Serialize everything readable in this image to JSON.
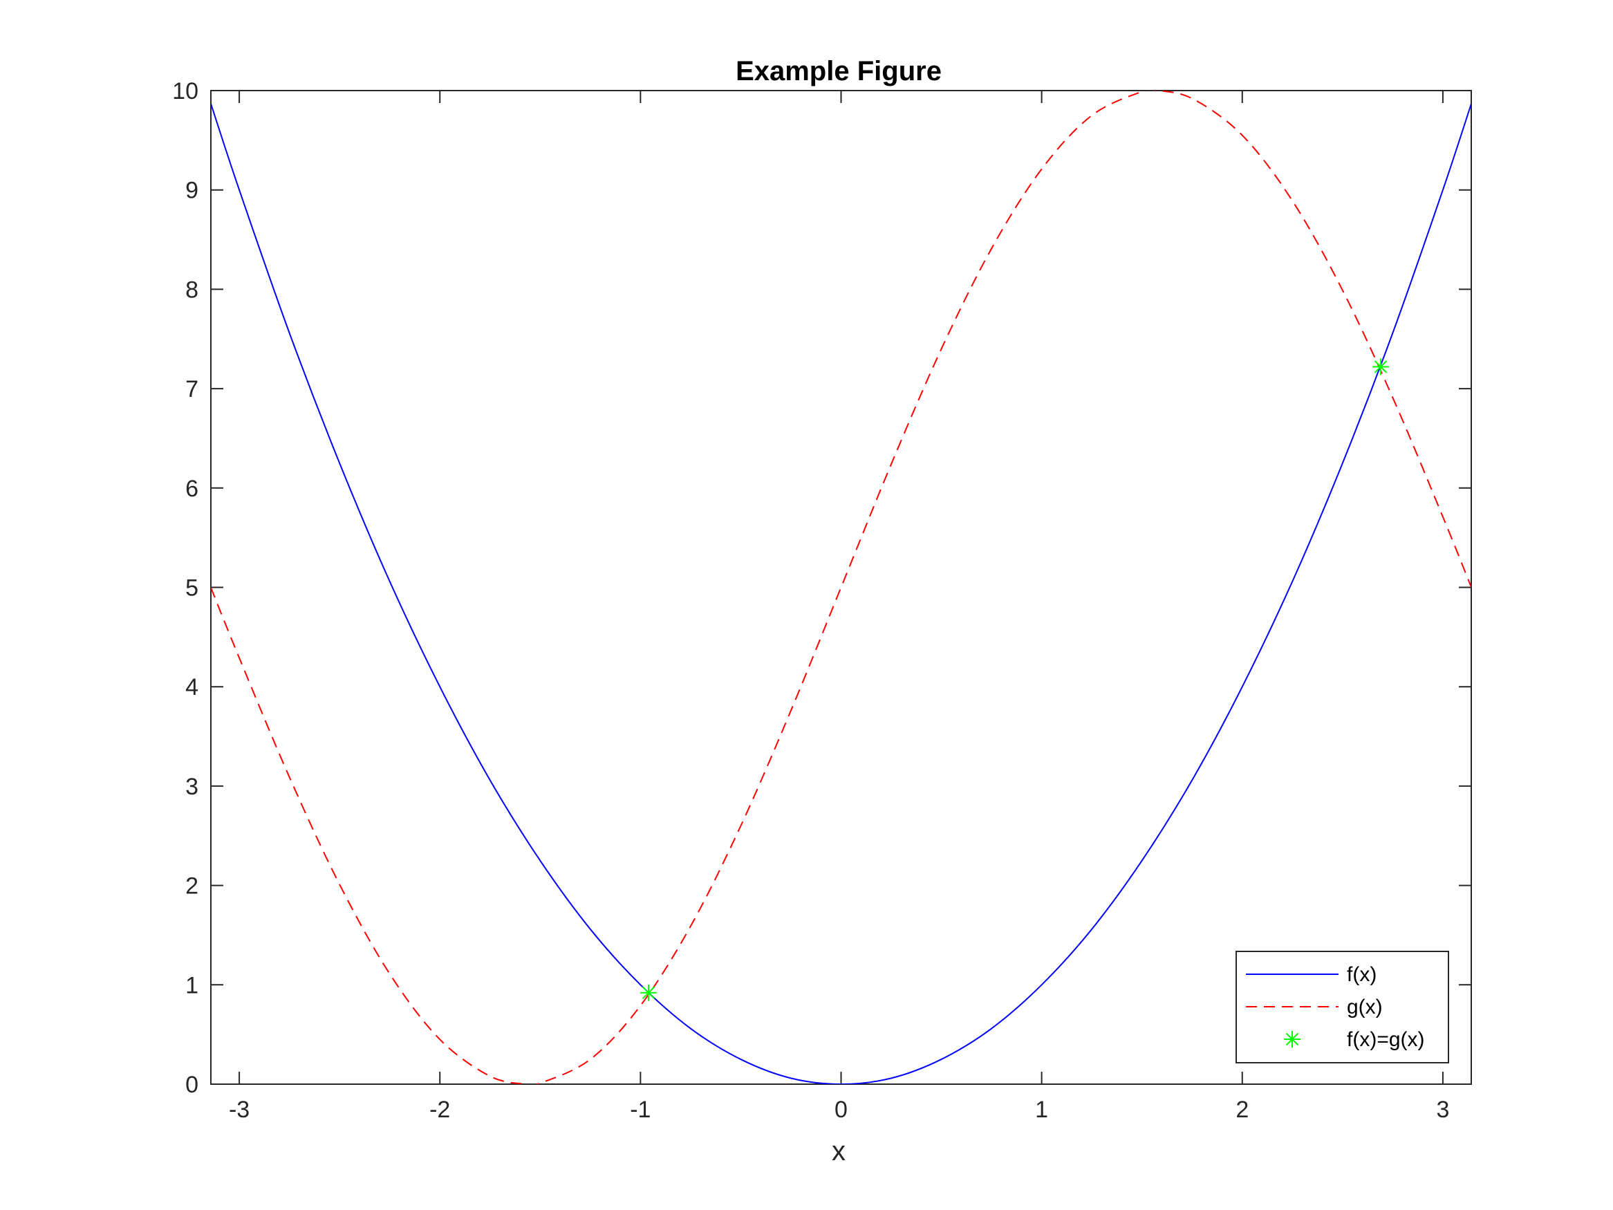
{
  "chart_data": {
    "type": "line",
    "title": "Example Figure",
    "xlabel": "x",
    "ylabel": "",
    "xlim": [
      -3.14159,
      3.14159
    ],
    "ylim": [
      0,
      10
    ],
    "xticks": [
      "-3",
      "-2",
      "-1",
      "0",
      "1",
      "2",
      "3"
    ],
    "yticks": [
      "0",
      "1",
      "2",
      "3",
      "4",
      "5",
      "6",
      "7",
      "8",
      "9",
      "10"
    ],
    "grid": false,
    "legend_position": "bottom-right",
    "series": [
      {
        "name": "f(x)",
        "style": "solid",
        "color": "#0000ff",
        "x": [
          -3.142,
          -3.0,
          -2.75,
          -2.5,
          -2.25,
          -2.0,
          -1.75,
          -1.5,
          -1.25,
          -1.0,
          -0.75,
          -0.5,
          -0.25,
          0.0,
          0.25,
          0.5,
          0.75,
          1.0,
          1.25,
          1.5,
          1.75,
          2.0,
          2.25,
          2.5,
          2.75,
          3.0,
          3.142
        ],
        "y": [
          9.87,
          9.0,
          7.56,
          6.25,
          5.06,
          4.0,
          3.06,
          2.25,
          1.56,
          1.0,
          0.56,
          0.25,
          0.06,
          0.0,
          0.06,
          0.25,
          0.56,
          1.0,
          1.56,
          2.25,
          3.06,
          4.0,
          5.06,
          6.25,
          7.56,
          9.0,
          9.87
        ]
      },
      {
        "name": "g(x)",
        "style": "dashed",
        "color": "#ff0000",
        "x": [
          -3.142,
          -3.0,
          -2.75,
          -2.5,
          -2.25,
          -2.0,
          -1.75,
          -1.571,
          -1.5,
          -1.25,
          -1.0,
          -0.75,
          -0.5,
          -0.25,
          0.0,
          0.25,
          0.5,
          0.75,
          1.0,
          1.25,
          1.5,
          1.571,
          1.75,
          2.0,
          2.25,
          2.5,
          2.75,
          3.0,
          3.142
        ],
        "y": [
          5.0,
          4.29,
          3.09,
          2.01,
          1.11,
          0.45,
          0.08,
          0.0,
          0.01,
          0.25,
          0.79,
          1.59,
          2.6,
          3.76,
          5.0,
          6.24,
          7.4,
          8.41,
          9.21,
          9.75,
          9.99,
          10.0,
          9.92,
          9.55,
          8.89,
          7.99,
          6.91,
          5.71,
          5.0
        ]
      },
      {
        "name": "f(x)=g(x)",
        "style": "marker",
        "marker": "asterisk",
        "color": "#00ff00",
        "x": [
          -0.96,
          2.69
        ],
        "y": [
          0.92,
          7.22
        ]
      }
    ]
  }
}
